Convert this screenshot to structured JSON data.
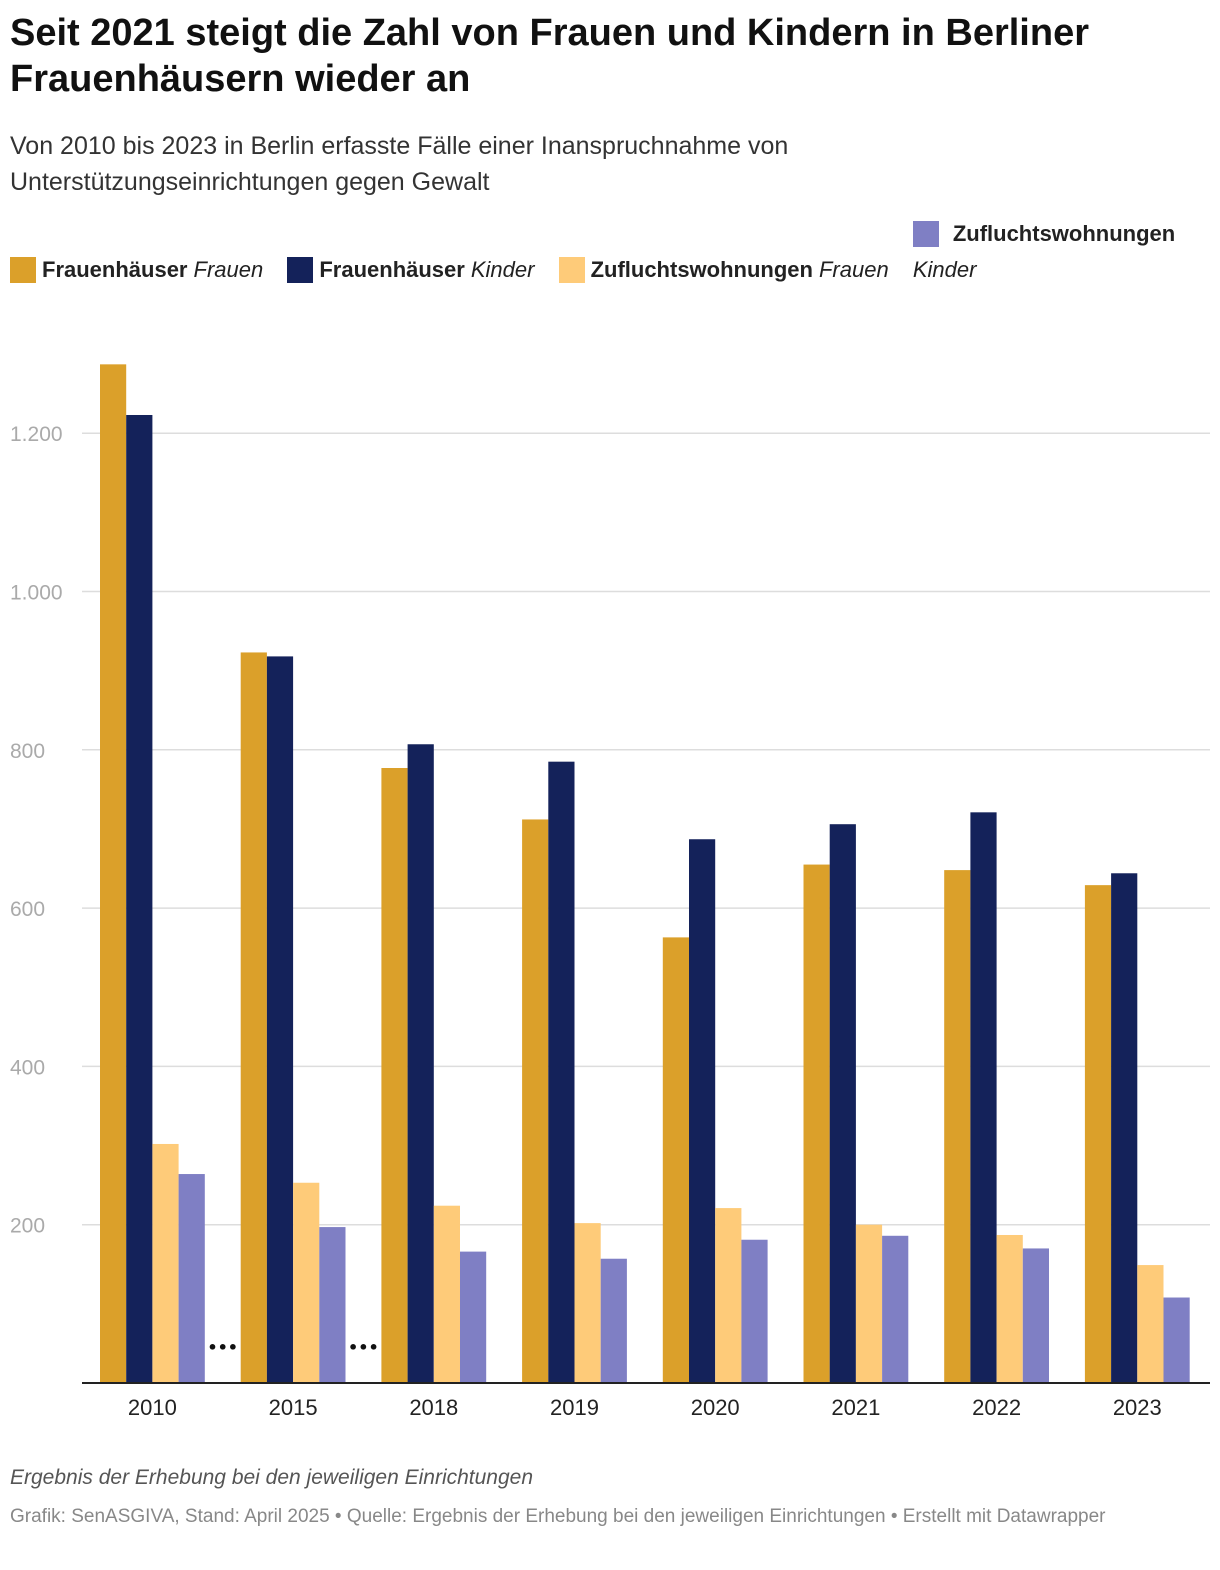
{
  "header": {
    "title": "Seit 2021 steigt die Zahl von Frauen und Kindern in Berliner Frauenhäusern wieder an",
    "subtitle": "Von 2010 bis 2023 in Berlin erfasste Fälle einer Inanspruchnahme von Unterstützungseinrichtungen gegen Gewalt"
  },
  "legend": [
    {
      "name": "Frauenhäuser",
      "sub": "Frauen",
      "color": "#dba02a"
    },
    {
      "name": "Frauenhäuser",
      "sub": "Kinder",
      "color": "#14225a"
    },
    {
      "name": "Zufluchtswohnungen",
      "sub": "Frauen",
      "color": "#fecb79"
    },
    {
      "name": "Zufluchtswohnungen",
      "sub": "Kinder",
      "color": "#7f7fc4"
    }
  ],
  "chart_data": {
    "type": "bar",
    "categories": [
      "2010",
      "2015",
      "2018",
      "2019",
      "2020",
      "2021",
      "2022",
      "2023"
    ],
    "series": [
      {
        "name": "Frauenhäuser Frauen",
        "color": "#dba02a",
        "values": [
          1287,
          923,
          777,
          712,
          563,
          655,
          648,
          629
        ]
      },
      {
        "name": "Frauenhäuser Kinder",
        "color": "#14225a",
        "values": [
          1223,
          918,
          807,
          785,
          687,
          706,
          721,
          644
        ]
      },
      {
        "name": "Zufluchtswohnungen Frauen",
        "color": "#fecb79",
        "values": [
          302,
          253,
          224,
          202,
          221,
          200,
          187,
          149
        ]
      },
      {
        "name": "Zufluchtswohnungen Kinder",
        "color": "#7f7fc4",
        "values": [
          264,
          197,
          166,
          157,
          181,
          186,
          170,
          108
        ]
      }
    ],
    "yticks": [
      200,
      400,
      600,
      800,
      1000,
      1200
    ],
    "ytick_labels": [
      "200",
      "400",
      "600",
      "800",
      "1.000",
      "1.200"
    ],
    "ylim": [
      0,
      1300
    ],
    "gap_markers_after": [
      "2010",
      "2015"
    ],
    "gap_marker_text": "•••",
    "grid": true,
    "legend_position": "top"
  },
  "footer": {
    "notes": "Ergebnis der Erhebung bei den jeweiligen Einrichtungen",
    "credits": "Grafik: SenASGIVA, Stand: April 2025 • Quelle: Ergebnis der Erhebung bei den jeweiligen Einrichtungen • Erstellt mit Datawrapper"
  }
}
